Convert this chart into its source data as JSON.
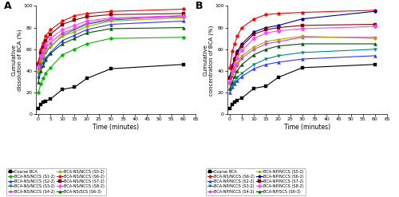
{
  "time_points": [
    0,
    1,
    2,
    3,
    5,
    10,
    15,
    20,
    30,
    60
  ],
  "panel_A": {
    "title": "A",
    "ylabel": "Cumulative\ndissolution of BCA (%)",
    "xlabel": "Time (minutes)",
    "ylim": [
      0,
      100
    ],
    "xlim": [
      -1,
      65
    ],
    "series": [
      {
        "label": "Coarse BCA",
        "color": "#000000",
        "marker": "s",
        "data": [
          5,
          9,
          11,
          12,
          14,
          23,
          25,
          33,
          42,
          46
        ]
      },
      {
        "label": "BCA-NS/NCCS (S1-2)",
        "color": "#00bb00",
        "marker": "o",
        "data": [
          20,
          28,
          33,
          38,
          43,
          55,
          60,
          65,
          70,
          71
        ]
      },
      {
        "label": "BCA-NS/NCCS (S2-2)",
        "color": "#3333ff",
        "marker": "^",
        "data": [
          35,
          44,
          48,
          52,
          57,
          68,
          73,
          78,
          83,
          86
        ]
      },
      {
        "label": "BCA-NS/NCCS (S3-2)",
        "color": "#008888",
        "marker": "v",
        "data": [
          38,
          47,
          52,
          57,
          62,
          73,
          78,
          83,
          87,
          91
        ]
      },
      {
        "label": "BCA-NS/NCCS (S4-2)",
        "color": "#cc44cc",
        "marker": "p",
        "data": [
          42,
          52,
          57,
          61,
          66,
          75,
          79,
          84,
          88,
          90
        ]
      },
      {
        "label": "BCA-NS/NCCS (S5-2)",
        "color": "#aaaa00",
        "marker": "h",
        "data": [
          40,
          49,
          54,
          58,
          63,
          72,
          76,
          81,
          86,
          89
        ]
      },
      {
        "label": "BCA-NS/NCCS (S6-2)",
        "color": "#ff0000",
        "marker": "o",
        "data": [
          48,
          60,
          66,
          72,
          78,
          86,
          91,
          93,
          95,
          97
        ]
      },
      {
        "label": "BCA-NS/NCCS (S7-2)",
        "color": "#880000",
        "marker": "s",
        "data": [
          46,
          57,
          62,
          68,
          74,
          83,
          87,
          90,
          92,
          93
        ]
      },
      {
        "label": "BCA-NS/NCCS (S8-2)",
        "color": "#ff44ff",
        "marker": "D",
        "data": [
          44,
          54,
          59,
          64,
          70,
          78,
          82,
          86,
          89,
          91
        ]
      },
      {
        "label": "BCA-NS/SCS (S6-3)",
        "color": "#005500",
        "marker": "^",
        "data": [
          30,
          40,
          45,
          50,
          56,
          65,
          70,
          75,
          79,
          80
        ]
      }
    ]
  },
  "panel_B": {
    "title": "B",
    "ylabel": "Cumulative\nconcentration of BCA (%)",
    "xlabel": "Time (minutes)",
    "ylim": [
      0,
      100
    ],
    "xlim": [
      -1,
      65
    ],
    "series": [
      {
        "label": "Coarse BCA",
        "color": "#000000",
        "marker": "s",
        "data": [
          5,
          9,
          11,
          13,
          15,
          24,
          26,
          34,
          43,
          46
        ]
      },
      {
        "label": "BCA-NS/NCCS (S6-2)",
        "color": "#ff0000",
        "marker": "o",
        "data": [
          43,
          58,
          65,
          72,
          80,
          88,
          92,
          93,
          94,
          96
        ]
      },
      {
        "label": "BCA-NP/NCCS (S2-2)",
        "color": "#3333ff",
        "marker": "^",
        "data": [
          20,
          25,
          28,
          31,
          35,
          42,
          46,
          48,
          51,
          54
        ]
      },
      {
        "label": "BCA-NP/NCCS (S3-2)",
        "color": "#008888",
        "marker": "v",
        "data": [
          22,
          27,
          30,
          34,
          38,
          46,
          51,
          54,
          57,
          60
        ]
      },
      {
        "label": "BCA-NP/NCCS (S4-2)",
        "color": "#cc44cc",
        "marker": "p",
        "data": [
          28,
          35,
          40,
          45,
          52,
          60,
          65,
          67,
          71,
          71
        ]
      },
      {
        "label": "BCA-NP/NCCS (S5-2)",
        "color": "#aaaa00",
        "marker": "h",
        "data": [
          30,
          37,
          42,
          47,
          54,
          62,
          67,
          69,
          72,
          70
        ]
      },
      {
        "label": "BCA-NP/NCCS (S6-2)",
        "color": "#000099",
        "marker": "o",
        "data": [
          35,
          45,
          52,
          58,
          65,
          76,
          80,
          82,
          88,
          95
        ]
      },
      {
        "label": "BCA-NP/NCCS (S7-2)",
        "color": "#880000",
        "marker": "s",
        "data": [
          33,
          43,
          50,
          56,
          63,
          74,
          78,
          80,
          82,
          83
        ]
      },
      {
        "label": "BCA-NP/NCCS (S8-2)",
        "color": "#ff44ff",
        "marker": "D",
        "data": [
          30,
          40,
          46,
          52,
          59,
          70,
          75,
          77,
          79,
          81
        ]
      },
      {
        "label": "BCA-NP/SCS (S6-3)",
        "color": "#005500",
        "marker": "^",
        "data": [
          24,
          30,
          35,
          40,
          46,
          55,
          60,
          63,
          65,
          65
        ]
      }
    ]
  }
}
